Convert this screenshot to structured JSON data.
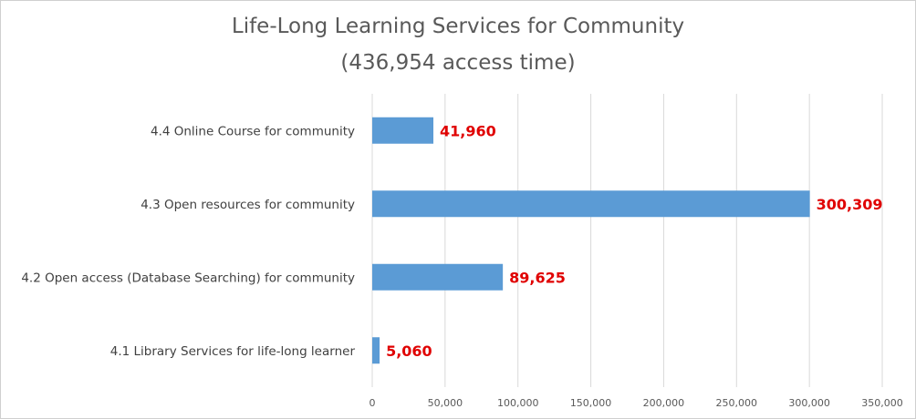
{
  "chart_data": {
    "type": "bar",
    "orientation": "horizontal",
    "title": "Life-Long Learning Services for Community",
    "subtitle": "(436,954 access time)",
    "categories": [
      "4.4 Online Course for community",
      "4.3 Open resources for community",
      "4.2 Open access (Database Searching) for community",
      "4.1 Library Services for life-long learner"
    ],
    "values": [
      41960,
      300309,
      89625,
      5060
    ],
    "data_labels": [
      "41,960",
      "300,309",
      "89,625",
      "5,060"
    ],
    "xlim": [
      0,
      350000
    ],
    "x_ticks": [
      0,
      50000,
      100000,
      150000,
      200000,
      250000,
      300000,
      350000
    ],
    "x_tick_labels": [
      "0",
      "50,000",
      "100,000",
      "150,000",
      "200,000",
      "250,000",
      "300,000",
      "350,000"
    ],
    "grid": "vertical",
    "legend": "none",
    "bar_color": "#5b9bd5",
    "label_color": "#e00000"
  }
}
